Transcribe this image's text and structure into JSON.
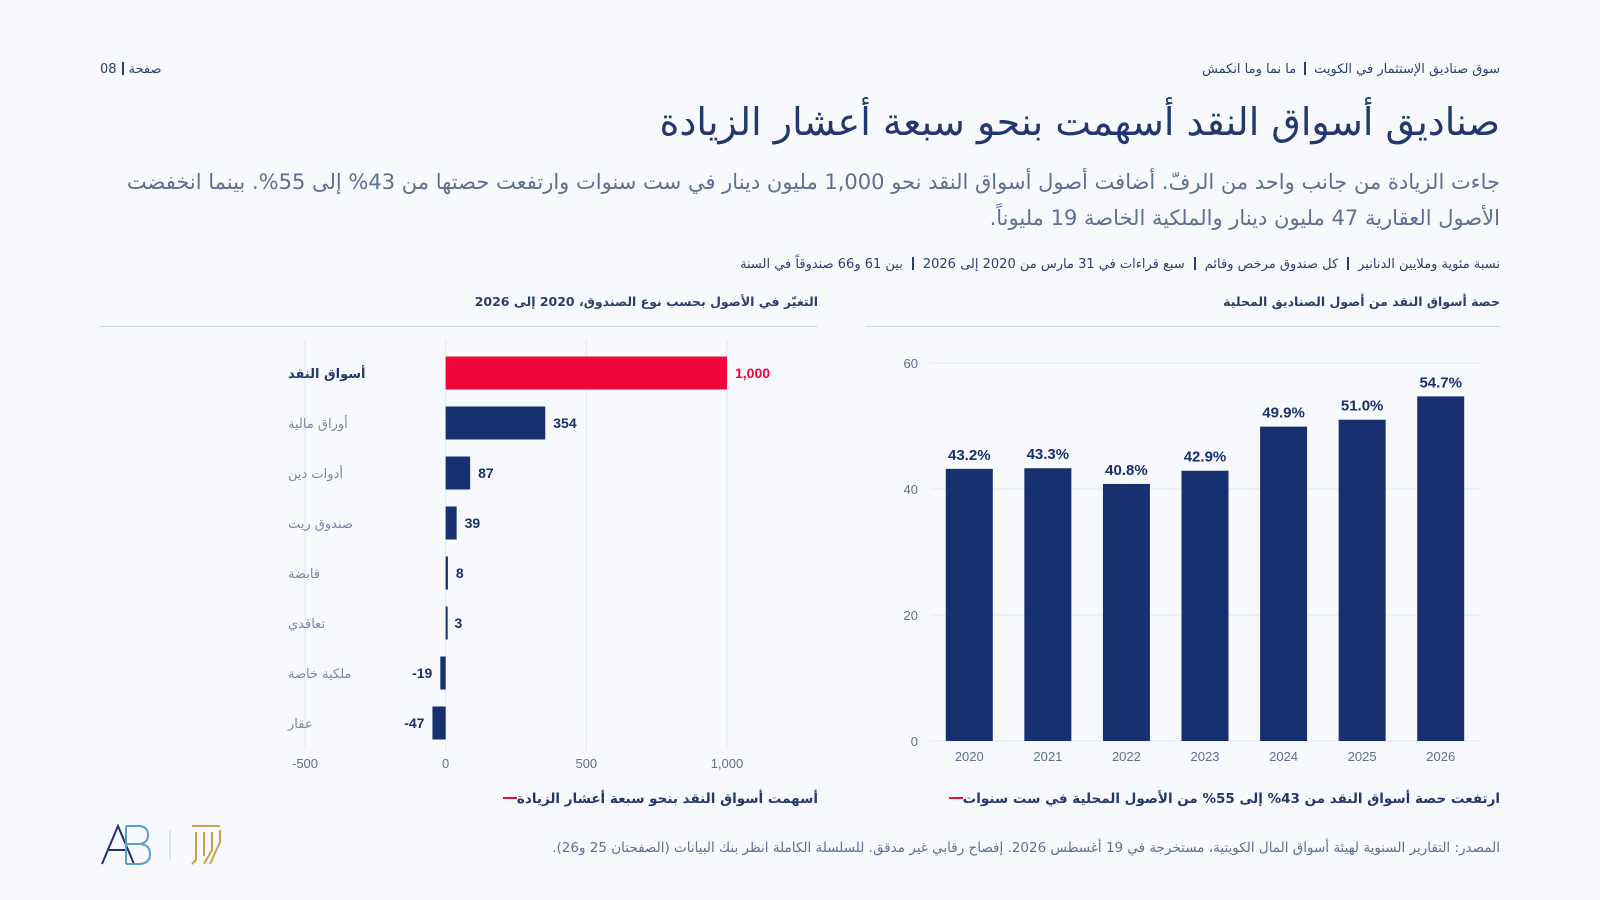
{
  "header": {
    "section": "سوق صناديق الإستثمار في الكويت",
    "subsection": "ما نما وما انكمش",
    "page_label": "صفحة",
    "page_number": "08"
  },
  "title": "صناديق أسواق النقد أسهمت بنحو سبعة أعشار الزيادة",
  "subtitle": "جاءت الزيادة من جانب واحد من الرفّ. أضافت أصول أسواق النقد نحو 1,000 مليون دينار في ست سنوات وارتفعت حصتها من 43% إلى 55%. بينما انخفضت الأصول العقارية 47 مليون دينار والملكية الخاصة 19 مليوناً.",
  "meta": [
    "نسبة مئوية وملايين الدنانير",
    "كل صندوق مرخص وقائم",
    "سبع قراءات في 31 مارس من 2020 إلى 2026",
    "بين 61 و66 صندوقاً في السنة"
  ],
  "left_panel": {
    "title": "التغيّر في الأصول بحسب نوع الصندوق، 2020 إلى 2026",
    "caption": "أسهمت أسواق النقد بنحو سبعة أعشار الزيادة"
  },
  "right_panel": {
    "title": "حصة أسواق النقد من أصول الصناديق المحلية",
    "caption": "ارتفعت حصة أسواق النقد من 43% إلى 55% من الأصول المحلية في ست سنوات"
  },
  "source": "المصدر: التقارير السنوية لهيئة أسواق المال الكويتية، مستخرجة في 19 أغسطس 2026. إفصاح رقابي غير مدقق. للسلسلة الكاملة انظر بنك البيانات (الصفحتان 25 و26).",
  "colors": {
    "navy": "#17306f",
    "accent": "#f0063a",
    "grid": "#e2e6ee",
    "axis_text": "#5f6f92"
  },
  "chart_data": [
    {
      "type": "bar",
      "orientation": "horizontal",
      "categories": [
        "أسواق النقد",
        "أوراق مالية",
        "أدوات دين",
        "صندوق ريت",
        "قابضة",
        "تعاقدي",
        "ملكية خاصة",
        "عقار"
      ],
      "values": [
        1000,
        354,
        87,
        39,
        8,
        3,
        -19,
        -47
      ],
      "value_labels": [
        "1,000",
        "354",
        "87",
        "39",
        "8",
        "3",
        "-19",
        "-47"
      ],
      "highlight_index": 0,
      "xlim": [
        -500,
        1000
      ],
      "xticks": [
        -500,
        0,
        500,
        1000
      ],
      "xtick_labels": [
        "-500",
        "0",
        "500",
        "1,000"
      ],
      "grid": true
    },
    {
      "type": "bar",
      "categories": [
        "2020",
        "2021",
        "2022",
        "2023",
        "2024",
        "2025",
        "2026"
      ],
      "values": [
        43.2,
        43.3,
        40.8,
        42.9,
        49.9,
        51.0,
        54.7
      ],
      "value_labels": [
        "43.2%",
        "43.3%",
        "40.8%",
        "42.9%",
        "49.9%",
        "51.0%",
        "54.7%"
      ],
      "ylim": [
        0,
        60
      ],
      "yticks": [
        0,
        20,
        40,
        60
      ],
      "grid": true
    }
  ]
}
